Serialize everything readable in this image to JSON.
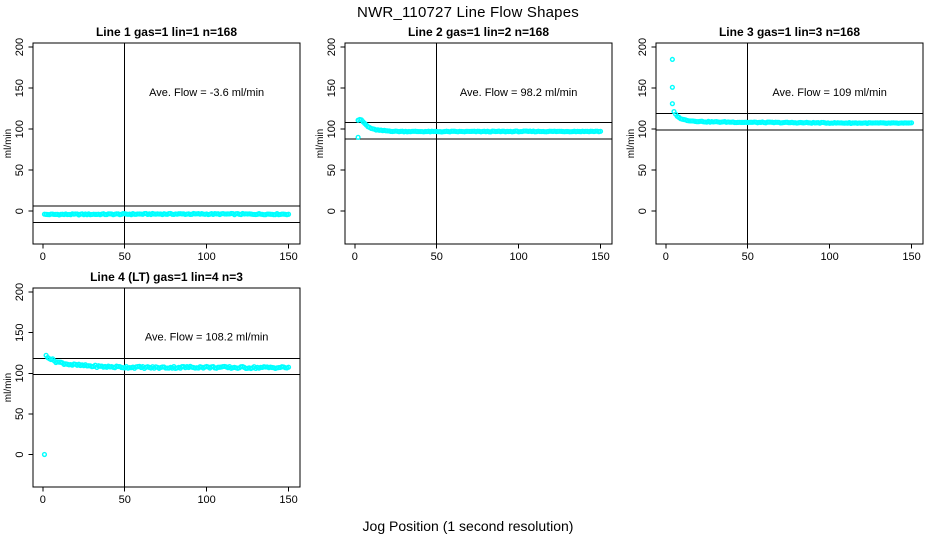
{
  "page": {
    "title": "NWR_110727  Line Flow Shapes",
    "xlabel": "Jog Position (1 second resolution)",
    "background_color": "#ffffff",
    "line_color": "#000000",
    "point_color": "#00FFFF"
  },
  "chart_data": [
    {
      "type": "scatter",
      "title": "Line 1 gas=1 lin=1 n=168",
      "annotation": "Ave. Flow = -3.6  ml/min",
      "ave_flow_ml_min": -3.6,
      "ylabel": "ml/min",
      "xlim": [
        -6,
        157
      ],
      "ylim": [
        -40,
        205
      ],
      "xticks": [
        0,
        50,
        100,
        150
      ],
      "yticks": [
        0,
        50,
        100,
        150,
        200
      ],
      "grid": false,
      "vline_x": 50,
      "hlines": [
        6.4,
        -13.6
      ],
      "marker": "open-circle",
      "color": "#00FFFF",
      "series": {
        "name": "line-1-flow",
        "x_start": 1,
        "x_end": 150,
        "x_step": 1,
        "jitter": 0.7,
        "keypoints": [
          [
            1,
            -4.0
          ],
          [
            75,
            -3.4
          ],
          [
            150,
            -3.6
          ]
        ],
        "outliers": []
      }
    },
    {
      "type": "scatter",
      "title": "Line 2 gas=1 lin=2 n=168",
      "annotation": "Ave. Flow =  98.2  ml/min",
      "ave_flow_ml_min": 98.2,
      "ylabel": "ml/min",
      "xlim": [
        -6,
        157
      ],
      "ylim": [
        -40,
        205
      ],
      "xticks": [
        0,
        50,
        100,
        150
      ],
      "yticks": [
        0,
        50,
        100,
        150,
        200
      ],
      "grid": false,
      "vline_x": 50,
      "hlines": [
        108.2,
        88.2
      ],
      "marker": "open-circle",
      "color": "#00FFFF",
      "series": {
        "name": "line-2-flow",
        "x_start": 2,
        "x_end": 150,
        "x_step": 1,
        "jitter": 0.45,
        "keypoints": [
          [
            2,
            111
          ],
          [
            3,
            112
          ],
          [
            4,
            111
          ],
          [
            6,
            107
          ],
          [
            8,
            103
          ],
          [
            11,
            100
          ],
          [
            15,
            98.5
          ],
          [
            25,
            97.3
          ],
          [
            50,
            97
          ],
          [
            100,
            97.2
          ],
          [
            150,
            97.3
          ]
        ],
        "outliers": [
          [
            2,
            90
          ]
        ]
      }
    },
    {
      "type": "scatter",
      "title": "Line 3 gas=1 lin=3 n=168",
      "annotation": "Ave. Flow =  109  ml/min",
      "ave_flow_ml_min": 109,
      "ylabel": "ml/min",
      "xlim": [
        -6,
        157
      ],
      "ylim": [
        -40,
        205
      ],
      "xticks": [
        0,
        50,
        100,
        150
      ],
      "yticks": [
        0,
        50,
        100,
        150,
        200
      ],
      "grid": false,
      "vline_x": 50,
      "hlines": [
        119,
        99
      ],
      "marker": "open-circle",
      "color": "#00FFFF",
      "series": {
        "name": "line-3-flow",
        "x_start": 5,
        "x_end": 150,
        "x_step": 1,
        "jitter": 0.5,
        "keypoints": [
          [
            5,
            121
          ],
          [
            6,
            118
          ],
          [
            8,
            114
          ],
          [
            11,
            111.5
          ],
          [
            16,
            110
          ],
          [
            25,
            109
          ],
          [
            50,
            108.3
          ],
          [
            100,
            107.6
          ],
          [
            150,
            107.2
          ]
        ],
        "outliers": [
          [
            4,
            185
          ],
          [
            4,
            151
          ],
          [
            4,
            131
          ]
        ]
      }
    },
    {
      "type": "scatter",
      "title": "Line 4 (LT) gas=1 lin=4 n=3",
      "annotation": "Ave. Flow =  108.2  ml/min",
      "ave_flow_ml_min": 108.2,
      "ylabel": "ml/min",
      "xlim": [
        -6,
        157
      ],
      "ylim": [
        -40,
        205
      ],
      "xticks": [
        0,
        50,
        100,
        150
      ],
      "yticks": [
        0,
        50,
        100,
        150,
        200
      ],
      "grid": false,
      "vline_x": 50,
      "hlines": [
        118.2,
        98.2
      ],
      "marker": "open-circle",
      "color": "#00FFFF",
      "series": {
        "name": "line-4-flow",
        "x_start": 2,
        "x_end": 150,
        "x_step": 1,
        "jitter": 1.3,
        "keypoints": [
          [
            2,
            122
          ],
          [
            3,
            120.5
          ],
          [
            5,
            117.5
          ],
          [
            8,
            114.5
          ],
          [
            12,
            112.5
          ],
          [
            18,
            110.5
          ],
          [
            25,
            109.5
          ],
          [
            35,
            108.3
          ],
          [
            50,
            107.6
          ],
          [
            70,
            107
          ],
          [
            95,
            107.6
          ],
          [
            120,
            107
          ],
          [
            150,
            107.2
          ]
        ],
        "outliers": [
          [
            1,
            0
          ]
        ]
      }
    }
  ]
}
